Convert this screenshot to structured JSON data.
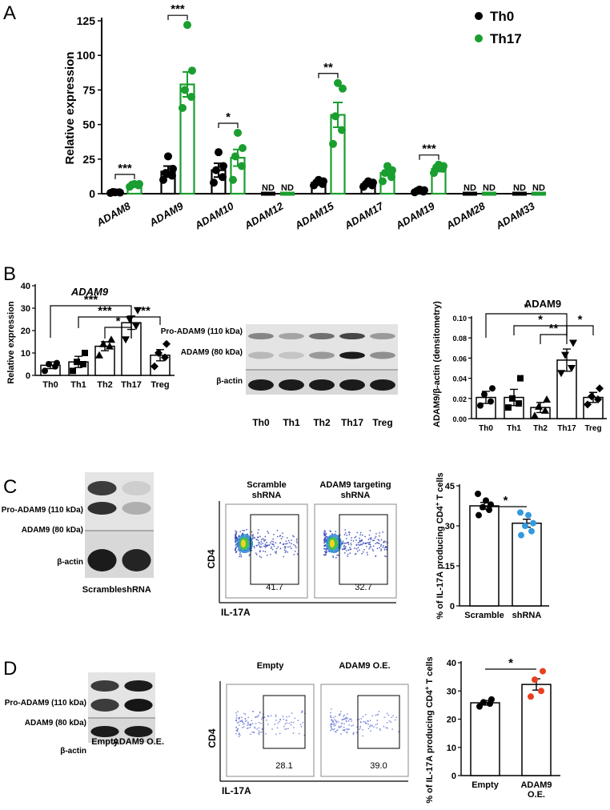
{
  "panels": {
    "A": {
      "letter": "A",
      "ylabel": "Relative expression",
      "legend": [
        {
          "name": "Th0",
          "color": "#000000"
        },
        {
          "name": "Th17",
          "color": "#1a9e2f"
        }
      ],
      "not_detected_label": "ND"
    },
    "B": {
      "letter": "B",
      "left": {
        "title": "ADAM9",
        "ylabel": "Relative expression"
      },
      "blot": {
        "band_labels": [
          "Pro-ADAM9 (110 kDa)",
          "ADAM9 (80 kDa)",
          "β-actin"
        ],
        "lanes": [
          "Th0",
          "Th1",
          "Th2",
          "Th17",
          "Treg"
        ]
      },
      "right": {
        "title": "ADAM9",
        "ylabel": "ADAM9/β-actin (densitometry)"
      }
    },
    "C": {
      "letter": "C",
      "blot": {
        "band_labels": [
          "Pro-ADAM9 (110 kDa)",
          "ADAM9 (80 kDa)",
          "β-actin"
        ],
        "lanes": [
          "Scramble",
          "shRNA"
        ]
      },
      "flow": {
        "panels": [
          {
            "title_lines": [
              "Scramble",
              "shRNA"
            ],
            "gate_value": "41.7"
          },
          {
            "title_lines": [
              "ADAM9 targeting",
              "shRNA"
            ],
            "gate_value": "32.7"
          }
        ],
        "y_axis": "CD4",
        "x_axis": "IL-17A"
      },
      "bar": {
        "ylabel": "% of IL-17A producing CD4+ T cells",
        "ylabel_main": "% of IL-17A producing CD4",
        "ylabel_sup": "+",
        "ylabel_tail": " T cells"
      }
    },
    "D": {
      "letter": "D",
      "blot": {
        "band_labels": [
          "Pro-ADAM9 (110 kDa)",
          "ADAM9 (80 kDa)",
          "β-actin"
        ],
        "lanes": [
          "Empty",
          "ADAM9 O.E."
        ]
      },
      "flow": {
        "panels": [
          {
            "title_lines": [
              "Empty"
            ],
            "gate_value": "28.1"
          },
          {
            "title_lines": [
              "ADAM9 O.E."
            ],
            "gate_value": "39.0"
          }
        ],
        "y_axis": "CD4",
        "x_axis": "IL-17A"
      },
      "bar": {
        "ylabel": "% of IL-17A producing CD4+ T cells",
        "ylabel_main": "% of IL-17A producing CD4",
        "ylabel_sup": "+",
        "ylabel_tail": " T cells"
      }
    }
  },
  "chart_data": [
    {
      "id": "A",
      "type": "bar",
      "ylabel": "Relative expression",
      "ylim": [
        0,
        125
      ],
      "yticks": [
        0,
        25,
        50,
        75,
        100,
        125
      ],
      "categories": [
        "ADAM8",
        "ADAM9",
        "ADAM10",
        "ADAM12",
        "ADAM15",
        "ADAM17",
        "ADAM19",
        "ADAM28",
        "ADAM33"
      ],
      "series": [
        {
          "name": "Th0",
          "color": "#000000",
          "values": [
            1,
            16,
            17,
            0,
            8,
            7,
            2,
            0,
            0
          ],
          "errors": [
            0.3,
            4,
            5,
            0,
            1.5,
            1,
            0.5,
            0,
            0
          ],
          "points": [
            [
              0.5,
              1,
              1.2,
              0.8,
              1
            ],
            [
              10,
              13,
              15,
              18,
              27
            ],
            [
              8,
              12,
              17,
              20,
              30
            ],
            [],
            [
              6,
              7,
              8,
              9,
              10
            ],
            [
              5,
              6,
              7,
              8,
              9
            ],
            [
              1,
              1.5,
              2,
              2.5,
              3
            ],
            [],
            []
          ],
          "not_detected": [
            false,
            false,
            false,
            true,
            false,
            false,
            false,
            true,
            true
          ]
        },
        {
          "name": "Th17",
          "color": "#1a9e2f",
          "values": [
            6,
            79,
            26,
            0,
            57,
            15,
            18,
            0,
            0
          ],
          "errors": [
            0.6,
            9,
            6,
            0,
            9,
            2,
            2,
            0,
            0
          ],
          "points": [
            [
              5,
              6,
              6.5,
              7,
              7
            ],
            [
              62,
              70,
              75,
              89,
              122
            ],
            [
              10,
              20,
              27,
              33,
              44
            ],
            [],
            [
              36,
              46,
              56,
              76,
              80
            ],
            [
              9,
              12,
              15,
              17,
              20
            ],
            [
              15,
              18,
              19,
              20,
              21
            ],
            [],
            []
          ],
          "not_detected": [
            false,
            false,
            false,
            true,
            false,
            false,
            false,
            true,
            true
          ]
        }
      ],
      "significance": [
        {
          "category": "ADAM8",
          "label": "***"
        },
        {
          "category": "ADAM9",
          "label": "***"
        },
        {
          "category": "ADAM10",
          "label": "*"
        },
        {
          "category": "ADAM15",
          "label": "**"
        },
        {
          "category": "ADAM19",
          "label": "***"
        }
      ]
    },
    {
      "id": "B-left",
      "type": "bar",
      "title": "ADAM9",
      "ylabel": "Relative expression",
      "ylim": [
        0,
        40
      ],
      "yticks": [
        0,
        10,
        20,
        30,
        40
      ],
      "categories": [
        "Th0",
        "Th1",
        "Th2",
        "Th17",
        "Treg"
      ],
      "values": [
        4.5,
        6,
        13,
        23.5,
        9
      ],
      "errors": [
        1.5,
        2.5,
        2,
        3,
        2.5
      ],
      "points": [
        [
          2,
          4,
          5,
          5.5
        ],
        [
          2,
          5,
          6,
          10
        ],
        [
          9,
          13,
          14,
          16
        ],
        [
          16,
          22,
          25,
          29
        ],
        [
          4,
          8,
          10,
          14
        ]
      ],
      "markers": [
        "circle",
        "square",
        "triangle",
        "triangle-down",
        "diamond"
      ],
      "significance": [
        {
          "from": "Th0",
          "to": "Th17",
          "label": "***"
        },
        {
          "from": "Th1",
          "to": "Th17",
          "label": "***"
        },
        {
          "from": "Th2",
          "to": "Th17",
          "label": "*"
        },
        {
          "from": "Th17",
          "to": "Treg",
          "label": "**"
        }
      ]
    },
    {
      "id": "B-right",
      "type": "bar",
      "title": "ADAM9",
      "ylabel": "ADAM9/β-actin (densitometry)",
      "ylim": [
        0,
        0.1
      ],
      "yticks": [
        "0.00",
        "0.02",
        "0.04",
        "0.06",
        "0.08",
        "0.10"
      ],
      "categories": [
        "Th0",
        "Th1",
        "Th2",
        "Th17",
        "Treg"
      ],
      "values": [
        0.021,
        0.021,
        0.011,
        0.058,
        0.021
      ],
      "errors": [
        0.006,
        0.008,
        0.005,
        0.011,
        0.005
      ],
      "points": [
        [
          0.013,
          0.017,
          0.024,
          0.03
        ],
        [
          0.011,
          0.015,
          0.02,
          0.04
        ],
        [
          0.003,
          0.008,
          0.012,
          0.019
        ],
        [
          0.045,
          0.05,
          0.063,
          0.075
        ],
        [
          0.014,
          0.019,
          0.022,
          0.03
        ]
      ],
      "markers": [
        "circle",
        "square",
        "triangle",
        "triangle-down",
        "diamond"
      ],
      "significance": [
        {
          "from": "Th0",
          "to": "Th17",
          "label": "*"
        },
        {
          "from": "Th1",
          "to": "Th17",
          "label": "*"
        },
        {
          "from": "Th2",
          "to": "Th17",
          "label": "**"
        },
        {
          "from": "Th17",
          "to": "Treg",
          "label": "*"
        }
      ]
    },
    {
      "id": "C-bar",
      "type": "bar",
      "ylabel": "% of IL-17A producing CD4+ T cells",
      "ylim": [
        0,
        45
      ],
      "yticks": [
        0,
        15,
        30,
        45
      ],
      "categories": [
        "Scramble",
        "shRNA"
      ],
      "values": [
        37.5,
        31
      ],
      "errors": [
        1.3,
        1.5
      ],
      "points": [
        [
          34,
          36,
          37,
          38,
          39.5,
          42
        ],
        [
          26.5,
          28,
          30,
          31,
          34,
          35
        ]
      ],
      "colors": [
        "#000000",
        "#3399dd"
      ],
      "significance": [
        {
          "from": "Scramble",
          "to": "shRNA",
          "label": "*"
        }
      ]
    },
    {
      "id": "D-bar",
      "type": "bar",
      "ylabel": "% of IL-17A producing CD4+ T cells",
      "ylim": [
        0,
        40
      ],
      "yticks": [
        0,
        10,
        20,
        30,
        40
      ],
      "categories": [
        "Empty",
        "ADAM9 O.E."
      ],
      "values": [
        25.8,
        32.3
      ],
      "errors": [
        0.8,
        2
      ],
      "points": [
        [
          24.5,
          25.5,
          26,
          27
        ],
        [
          28,
          30,
          34,
          37
        ]
      ],
      "colors": [
        "#000000",
        "#e8401e"
      ],
      "significance": [
        {
          "from": "Empty",
          "to": "ADAM9 O.E.",
          "label": "*"
        }
      ]
    }
  ]
}
